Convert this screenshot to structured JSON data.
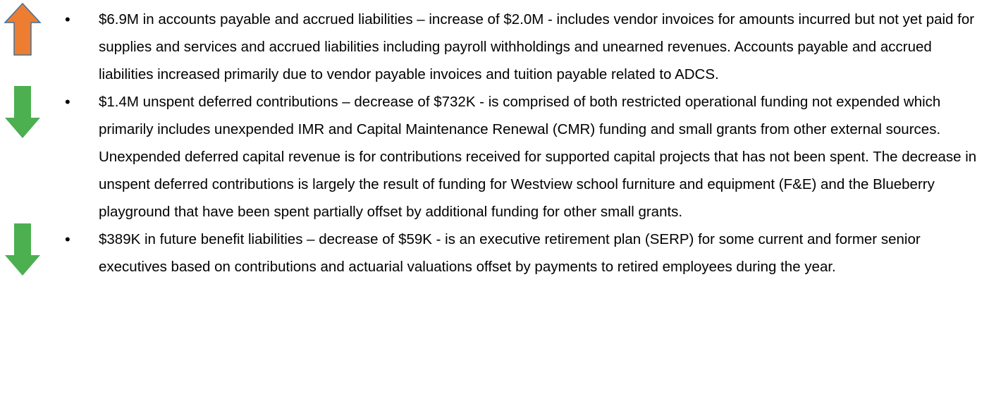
{
  "items": [
    {
      "text": "$6.9M in accounts payable and accrued liabilities – increase of $2.0M - includes vendor invoices for amounts incurred but not yet paid for supplies and services and accrued liabilities including payroll withholdings and unearned revenues.  Accounts payable and accrued liabilities increased primarily due to vendor payable invoices and tuition payable related to ADCS."
    },
    {
      "text": "$1.4M unspent deferred contributions – decrease of $732K - is comprised of both restricted operational funding not expended which primarily includes unexpended IMR and Capital Maintenance Renewal (CMR) funding and small grants from other external sources.  Unexpended deferred capital revenue is for contributions received for supported capital projects that has not been spent.  The decrease in unspent deferred contributions is largely the result of funding for Westview school furniture and equipment (F&E) and the Blueberry playground that have been spent partially offset by additional funding for other small grants."
    },
    {
      "text": "$389K in future benefit liabilities – decrease of $59K - is an executive retirement plan (SERP) for some current and former senior executives based on contributions and actuarial valuations offset by payments to retired employees during the year."
    }
  ]
}
